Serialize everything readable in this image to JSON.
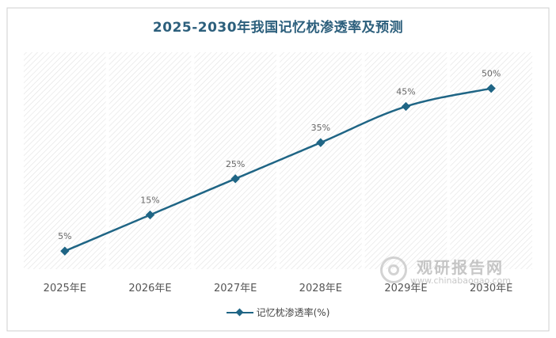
{
  "chart_data": {
    "type": "line",
    "title": "2025-2030年我国记忆枕渗透率及预测",
    "categories": [
      "2025年E",
      "2026年E",
      "2027年E",
      "2028年E",
      "2029年E",
      "2030年E"
    ],
    "series": [
      {
        "name": "记忆枕渗透率(%)",
        "values": [
          5,
          15,
          25,
          35,
          45,
          50
        ],
        "labels": [
          "5%",
          "15%",
          "25%",
          "35%",
          "45%",
          "50%"
        ],
        "color": "#1f6585"
      }
    ],
    "ylim": [
      0,
      60
    ],
    "grid": false,
    "legend": "bottom",
    "background_pattern": "diagonal-hatch"
  },
  "watermark": {
    "text": "观研报告网",
    "sub": "www.chinabaogao.com"
  }
}
